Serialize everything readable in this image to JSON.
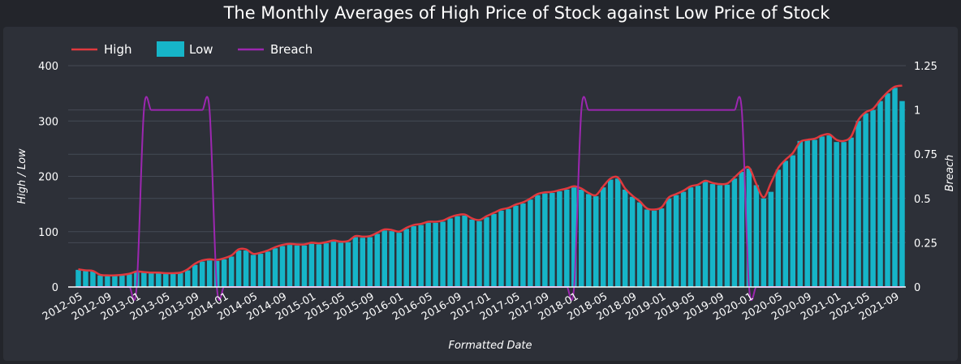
{
  "chart_data": {
    "type": "bar",
    "title": "The Monthly Averages of High Price of Stock against Low Price of Stock",
    "xlabel": "Formatted Date",
    "ylabel": "High / Low",
    "y2label": "Breach",
    "ylim": [
      0,
      400
    ],
    "y2lim": [
      0,
      1.25
    ],
    "yticks": [
      "0",
      "100",
      "200",
      "300",
      "400"
    ],
    "y2ticks": [
      "0",
      "0.25",
      "0.5",
      "0.75",
      "1",
      "1.25"
    ],
    "grid": true,
    "legend_position": "top-left",
    "colors": {
      "high": "#e0393e",
      "low": "#16b5c8",
      "breach": "#9c27b0"
    },
    "x_tick_labels": [
      "2012-05",
      "2012-09",
      "2013-01",
      "2013-05",
      "2013-09",
      "2014-01",
      "2014-05",
      "2014-09",
      "2015-01",
      "2015-05",
      "2015-09",
      "2016-01",
      "2016-05",
      "2016-09",
      "2017-01",
      "2017-05",
      "2017-09",
      "2018-01",
      "2018-05",
      "2018-09",
      "2019-01",
      "2019-05",
      "2019-09",
      "2020-01",
      "2020-05",
      "2020-09",
      "2021-01",
      "2021-05",
      "2021-09"
    ],
    "x": [
      "2012-05",
      "2012-06",
      "2012-07",
      "2012-08",
      "2012-09",
      "2012-10",
      "2012-11",
      "2012-12",
      "2013-01",
      "2013-02",
      "2013-03",
      "2013-04",
      "2013-05",
      "2013-06",
      "2013-07",
      "2013-08",
      "2013-09",
      "2013-10",
      "2013-11",
      "2013-12",
      "2014-01",
      "2014-02",
      "2014-03",
      "2014-04",
      "2014-05",
      "2014-06",
      "2014-07",
      "2014-08",
      "2014-09",
      "2014-10",
      "2014-11",
      "2014-12",
      "2015-01",
      "2015-02",
      "2015-03",
      "2015-04",
      "2015-05",
      "2015-06",
      "2015-07",
      "2015-08",
      "2015-09",
      "2015-10",
      "2015-11",
      "2015-12",
      "2016-01",
      "2016-02",
      "2016-03",
      "2016-04",
      "2016-05",
      "2016-06",
      "2016-07",
      "2016-08",
      "2016-09",
      "2016-10",
      "2016-11",
      "2016-12",
      "2017-01",
      "2017-02",
      "2017-03",
      "2017-04",
      "2017-05",
      "2017-06",
      "2017-07",
      "2017-08",
      "2017-09",
      "2017-10",
      "2017-11",
      "2017-12",
      "2018-01",
      "2018-02",
      "2018-03",
      "2018-04",
      "2018-05",
      "2018-06",
      "2018-07",
      "2018-08",
      "2018-09",
      "2018-10",
      "2018-11",
      "2018-12",
      "2019-01",
      "2019-02",
      "2019-03",
      "2019-04",
      "2019-05",
      "2019-06",
      "2019-07",
      "2019-08",
      "2019-09",
      "2019-10",
      "2019-11",
      "2019-12",
      "2020-01",
      "2020-02",
      "2020-03",
      "2020-04",
      "2020-05",
      "2020-06",
      "2020-07",
      "2020-08",
      "2020-09",
      "2020-10",
      "2020-11",
      "2020-12",
      "2021-01",
      "2021-02",
      "2021-03",
      "2021-04",
      "2021-05",
      "2021-06",
      "2021-07",
      "2021-08",
      "2021-09",
      "2021-10"
    ],
    "series": [
      {
        "name": "High",
        "type": "line",
        "values": [
          32,
          30,
          29,
          22,
          21,
          21,
          22,
          24,
          28,
          27,
          26,
          26,
          25,
          25,
          26,
          32,
          42,
          48,
          50,
          49,
          52,
          57,
          68,
          68,
          60,
          62,
          66,
          72,
          76,
          78,
          77,
          77,
          80,
          79,
          81,
          84,
          82,
          83,
          92,
          91,
          92,
          98,
          104,
          103,
          100,
          107,
          112,
          114,
          118,
          118,
          120,
          126,
          130,
          131,
          124,
          121,
          128,
          134,
          140,
          143,
          149,
          153,
          160,
          168,
          171,
          172,
          175,
          178,
          182,
          178,
          170,
          166,
          182,
          196,
          198,
          178,
          165,
          155,
          142,
          140,
          144,
          162,
          168,
          174,
          182,
          185,
          192,
          188,
          186,
          187,
          198,
          210,
          216,
          186,
          162,
          188,
          215,
          230,
          242,
          262,
          266,
          268,
          274,
          276,
          266,
          264,
          272,
          302,
          316,
          322,
          338,
          352,
          362,
          364
        ]
      },
      {
        "name": "Low",
        "type": "bar",
        "values": [
          31,
          29,
          28,
          21,
          20,
          20,
          21,
          23,
          27,
          26,
          25,
          25,
          24,
          24,
          25,
          30,
          40,
          46,
          48,
          47,
          50,
          55,
          66,
          66,
          58,
          60,
          64,
          70,
          74,
          76,
          75,
          75,
          78,
          77,
          79,
          82,
          80,
          81,
          90,
          89,
          90,
          96,
          102,
          101,
          98,
          105,
          110,
          112,
          116,
          116,
          118,
          124,
          128,
          129,
          122,
          119,
          126,
          132,
          138,
          141,
          147,
          151,
          158,
          166,
          169,
          170,
          173,
          176,
          180,
          176,
          168,
          164,
          180,
          194,
          196,
          176,
          163,
          153,
          140,
          138,
          142,
          160,
          166,
          172,
          180,
          183,
          190,
          186,
          184,
          185,
          196,
          208,
          214,
          184,
          160,
          172,
          212,
          228,
          238,
          264,
          265,
          266,
          272,
          274,
          262,
          262,
          270,
          300,
          314,
          320,
          336,
          350,
          360,
          336
        ]
      },
      {
        "name": "Breach",
        "type": "line",
        "axis": "right",
        "values": [
          0,
          0,
          0,
          0,
          0,
          0,
          0,
          0,
          0,
          1,
          1,
          1,
          1,
          1,
          1,
          1,
          1,
          1,
          1,
          0,
          0,
          0,
          0,
          0,
          0,
          0,
          0,
          0,
          0,
          0,
          0,
          0,
          0,
          0,
          0,
          0,
          0,
          0,
          0,
          0,
          0,
          0,
          0,
          0,
          0,
          0,
          0,
          0,
          0,
          0,
          0,
          0,
          0,
          0,
          0,
          0,
          0,
          0,
          0,
          0,
          0,
          0,
          0,
          0,
          0,
          0,
          0,
          0,
          0,
          1,
          1,
          1,
          1,
          1,
          1,
          1,
          1,
          1,
          1,
          1,
          1,
          1,
          1,
          1,
          1,
          1,
          1,
          1,
          1,
          1,
          1,
          1,
          0,
          0,
          0,
          0,
          0,
          0,
          0,
          0,
          0,
          0,
          0,
          0,
          0,
          0,
          0,
          0,
          0,
          0,
          0,
          0,
          0,
          0
        ]
      }
    ]
  }
}
